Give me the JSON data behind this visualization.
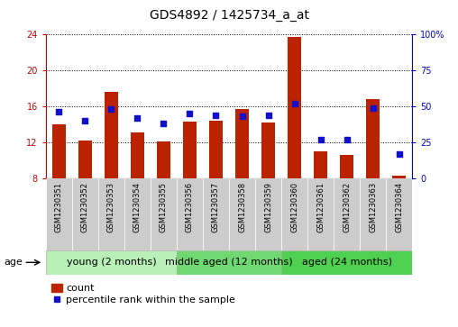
{
  "title": "GDS4892 / 1425734_a_at",
  "samples": [
    "GSM1230351",
    "GSM1230352",
    "GSM1230353",
    "GSM1230354",
    "GSM1230355",
    "GSM1230356",
    "GSM1230357",
    "GSM1230358",
    "GSM1230359",
    "GSM1230360",
    "GSM1230361",
    "GSM1230362",
    "GSM1230363",
    "GSM1230364"
  ],
  "counts": [
    14.0,
    12.2,
    17.6,
    13.1,
    12.1,
    14.3,
    14.4,
    15.7,
    14.2,
    23.7,
    11.0,
    10.6,
    16.8,
    8.3
  ],
  "percentiles": [
    46,
    40,
    48,
    42,
    38,
    45,
    44,
    43,
    44,
    52,
    27,
    27,
    49,
    17
  ],
  "ylim_left": [
    8,
    24
  ],
  "ylim_right": [
    0,
    100
  ],
  "yticks_left": [
    8,
    12,
    16,
    20,
    24
  ],
  "yticks_right": [
    0,
    25,
    50,
    75,
    100
  ],
  "groups": [
    {
      "label": "young (2 months)",
      "start": 0,
      "end": 5
    },
    {
      "label": "middle aged (12 months)",
      "start": 5,
      "end": 9
    },
    {
      "label": "aged (24 months)",
      "start": 9,
      "end": 14
    }
  ],
  "group_colors": [
    "#b8f0b8",
    "#70d870",
    "#50d050"
  ],
  "bar_color": "#bb2200",
  "marker_color": "#1111cc",
  "sample_box_color": "#cccccc",
  "plot_bg": "#ffffff",
  "left_axis_color": "#cc0000",
  "right_axis_color": "#0000cc",
  "bar_width": 0.5,
  "title_fontsize": 10,
  "tick_fontsize": 7,
  "sample_fontsize": 6,
  "group_label_fontsize": 8,
  "legend_fontsize": 8
}
